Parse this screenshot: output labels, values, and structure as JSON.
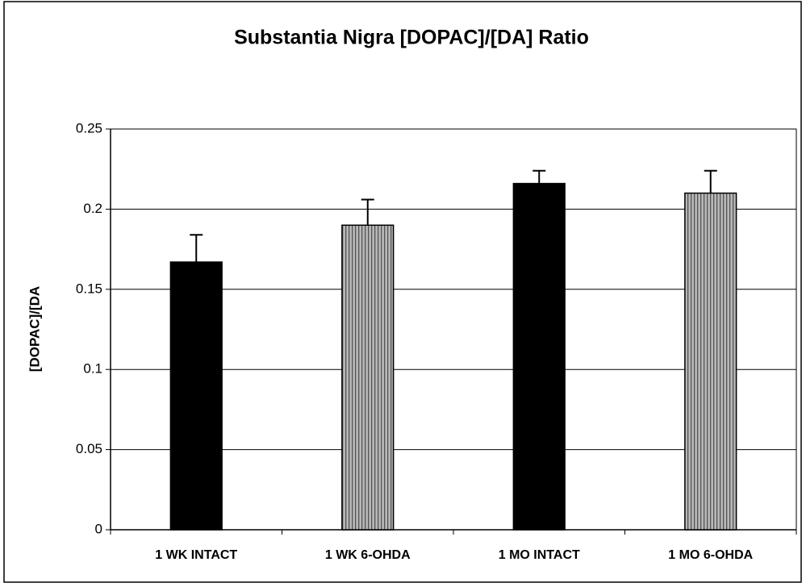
{
  "chart_data": {
    "type": "bar",
    "title": "Substantia Nigra [DOPAC]/[DA] Ratio",
    "y_label": "[DOPAC]/[DA",
    "categories": [
      "1 WK INTACT",
      "1 WK 6-OHDA",
      "1 MO INTACT",
      "1 MO 6-OHDA"
    ],
    "values": [
      0.167,
      0.19,
      0.216,
      0.21
    ],
    "errors": [
      0.017,
      0.016,
      0.008,
      0.014
    ],
    "colors": [
      "#000000",
      "#b8b8b8",
      "#000000",
      "#b8b8b8"
    ],
    "hatch": [
      false,
      true,
      false,
      true
    ],
    "ylim": [
      0,
      0.25
    ],
    "yticks": [
      0,
      0.05,
      0.1,
      0.15,
      0.2,
      0.25
    ],
    "grid": true
  }
}
